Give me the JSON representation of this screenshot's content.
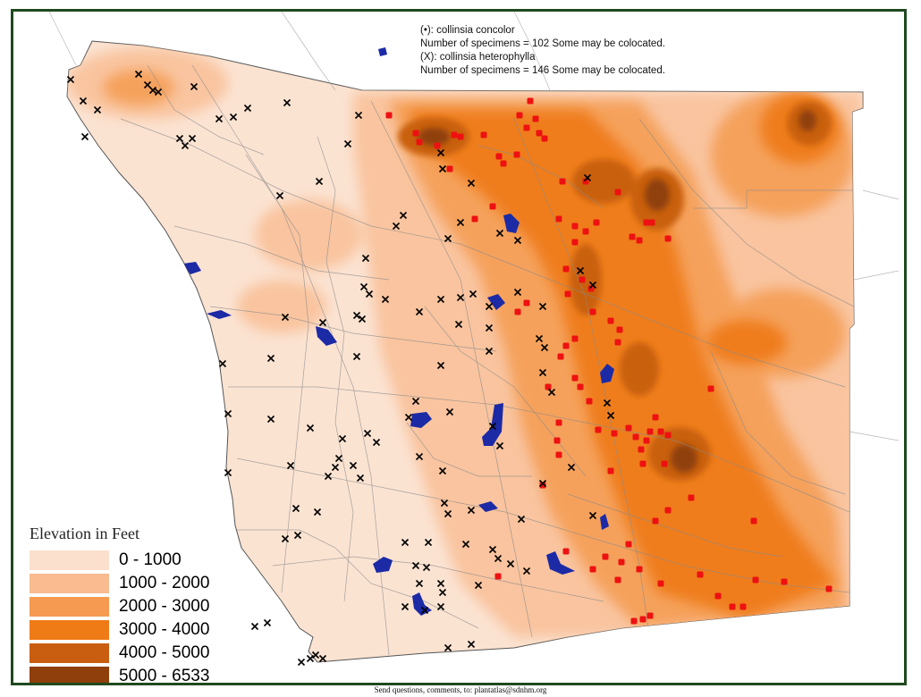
{
  "header": {
    "line1": "(•): collinsia concolor",
    "line2": "Number of specimens = 102   Some may be colocated.",
    "line3": "(X): collinsia heterophylla",
    "line4": "Number of specimens = 146   Some may be colocated."
  },
  "legend": {
    "title": "Elevation in Feet",
    "items": [
      {
        "label": "0 - 1000",
        "color": "#fbe0cd"
      },
      {
        "label": "1000 - 2000",
        "color": "#f9bb8f"
      },
      {
        "label": "2000 - 3000",
        "color": "#f59a50"
      },
      {
        "label": "3000 - 4000",
        "color": "#ef7b17"
      },
      {
        "label": "4000 - 5000",
        "color": "#c95e10"
      },
      {
        "label": "5000 - 6533",
        "color": "#8f3f0b"
      }
    ]
  },
  "footer": {
    "text": "Send questions, comments, to: plantatlas@sdnhm.org"
  },
  "colors": {
    "frame": "#1f4a1f",
    "lake": "#1c2aa6",
    "concolor_marker": "#ee1111",
    "heterophylla_marker": "#000000"
  },
  "map": {
    "concolor_points": [
      [
        432,
        126
      ],
      [
        462,
        146
      ],
      [
        466,
        156
      ],
      [
        486,
        160
      ],
      [
        505,
        148
      ],
      [
        512,
        150
      ],
      [
        538,
        148
      ],
      [
        555,
        172
      ],
      [
        560,
        180
      ],
      [
        575,
        170
      ],
      [
        578,
        126
      ],
      [
        586,
        140
      ],
      [
        596,
        130
      ],
      [
        600,
        146
      ],
      [
        606,
        152
      ],
      [
        590,
        110
      ],
      [
        626,
        200
      ],
      [
        652,
        200
      ],
      [
        688,
        212
      ],
      [
        704,
        262
      ],
      [
        712,
        266
      ],
      [
        720,
        246
      ],
      [
        726,
        246
      ],
      [
        744,
        264
      ],
      [
        622,
        242
      ],
      [
        640,
        250
      ],
      [
        652,
        256
      ],
      [
        664,
        246
      ],
      [
        640,
        268
      ],
      [
        630,
        298
      ],
      [
        648,
        310
      ],
      [
        658,
        320
      ],
      [
        632,
        326
      ],
      [
        660,
        346
      ],
      [
        680,
        356
      ],
      [
        690,
        366
      ],
      [
        688,
        380
      ],
      [
        640,
        376
      ],
      [
        630,
        384
      ],
      [
        624,
        396
      ],
      [
        640,
        420
      ],
      [
        646,
        430
      ],
      [
        656,
        446
      ],
      [
        610,
        430
      ],
      [
        622,
        470
      ],
      [
        666,
        478
      ],
      [
        684,
        482
      ],
      [
        700,
        476
      ],
      [
        708,
        486
      ],
      [
        714,
        500
      ],
      [
        720,
        490
      ],
      [
        724,
        480
      ],
      [
        730,
        464
      ],
      [
        736,
        480
      ],
      [
        744,
        484
      ],
      [
        740,
        516
      ],
      [
        716,
        516
      ],
      [
        620,
        490
      ],
      [
        622,
        506
      ],
      [
        680,
        524
      ],
      [
        792,
        432
      ],
      [
        770,
        554
      ],
      [
        744,
        568
      ],
      [
        730,
        580
      ],
      [
        700,
        606
      ],
      [
        674,
        620
      ],
      [
        692,
        626
      ],
      [
        712,
        634
      ],
      [
        736,
        650
      ],
      [
        660,
        634
      ],
      [
        688,
        646
      ],
      [
        780,
        640
      ],
      [
        840,
        580
      ],
      [
        842,
        646
      ],
      [
        874,
        648
      ],
      [
        924,
        656
      ],
      [
        800,
        664
      ],
      [
        816,
        676
      ],
      [
        828,
        676
      ],
      [
        706,
        692
      ],
      [
        716,
        690
      ],
      [
        724,
        686
      ],
      [
        630,
        614
      ],
      [
        604,
        540
      ],
      [
        576,
        346
      ],
      [
        586,
        336
      ],
      [
        554,
        642
      ],
      [
        528,
        242
      ],
      [
        500,
        186
      ],
      [
        548,
        228
      ]
    ],
    "heterophylla_points": [
      [
        76,
        86
      ],
      [
        90,
        110
      ],
      [
        106,
        120
      ],
      [
        92,
        150
      ],
      [
        152,
        80
      ],
      [
        162,
        92
      ],
      [
        168,
        98
      ],
      [
        174,
        100
      ],
      [
        214,
        94
      ],
      [
        242,
        130
      ],
      [
        258,
        128
      ],
      [
        274,
        118
      ],
      [
        318,
        112
      ],
      [
        198,
        152
      ],
      [
        204,
        160
      ],
      [
        212,
        152
      ],
      [
        398,
        126
      ],
      [
        386,
        158
      ],
      [
        490,
        168
      ],
      [
        492,
        186
      ],
      [
        524,
        202
      ],
      [
        654,
        196
      ],
      [
        310,
        216
      ],
      [
        354,
        200
      ],
      [
        448,
        238
      ],
      [
        440,
        250
      ],
      [
        512,
        246
      ],
      [
        556,
        258
      ],
      [
        576,
        266
      ],
      [
        498,
        264
      ],
      [
        646,
        300
      ],
      [
        660,
        316
      ],
      [
        604,
        340
      ],
      [
        406,
        286
      ],
      [
        404,
        318
      ],
      [
        410,
        326
      ],
      [
        428,
        332
      ],
      [
        466,
        346
      ],
      [
        490,
        332
      ],
      [
        512,
        330
      ],
      [
        526,
        326
      ],
      [
        576,
        324
      ],
      [
        544,
        340
      ],
      [
        358,
        358
      ],
      [
        396,
        350
      ],
      [
        402,
        354
      ],
      [
        316,
        352
      ],
      [
        510,
        360
      ],
      [
        544,
        364
      ],
      [
        600,
        376
      ],
      [
        606,
        386
      ],
      [
        544,
        390
      ],
      [
        490,
        406
      ],
      [
        396,
        396
      ],
      [
        300,
        398
      ],
      [
        246,
        404
      ],
      [
        462,
        446
      ],
      [
        454,
        464
      ],
      [
        500,
        458
      ],
      [
        548,
        474
      ],
      [
        604,
        414
      ],
      [
        614,
        436
      ],
      [
        676,
        448
      ],
      [
        680,
        462
      ],
      [
        252,
        460
      ],
      [
        300,
        466
      ],
      [
        344,
        476
      ],
      [
        380,
        488
      ],
      [
        408,
        482
      ],
      [
        418,
        492
      ],
      [
        322,
        518
      ],
      [
        364,
        530
      ],
      [
        372,
        520
      ],
      [
        376,
        510
      ],
      [
        392,
        518
      ],
      [
        400,
        532
      ],
      [
        252,
        526
      ],
      [
        466,
        508
      ],
      [
        492,
        524
      ],
      [
        556,
        496
      ],
      [
        604,
        538
      ],
      [
        636,
        520
      ],
      [
        660,
        574
      ],
      [
        494,
        560
      ],
      [
        498,
        572
      ],
      [
        524,
        568
      ],
      [
        580,
        578
      ],
      [
        328,
        566
      ],
      [
        352,
        570
      ],
      [
        316,
        600
      ],
      [
        330,
        596
      ],
      [
        450,
        604
      ],
      [
        476,
        604
      ],
      [
        518,
        606
      ],
      [
        548,
        612
      ],
      [
        554,
        622
      ],
      [
        568,
        628
      ],
      [
        586,
        636
      ],
      [
        462,
        630
      ],
      [
        474,
        632
      ],
      [
        490,
        650
      ],
      [
        492,
        660
      ],
      [
        532,
        652
      ],
      [
        450,
        676
      ],
      [
        472,
        680
      ],
      [
        466,
        650
      ],
      [
        490,
        676
      ],
      [
        498,
        722
      ],
      [
        524,
        718
      ],
      [
        334,
        738
      ],
      [
        344,
        734
      ],
      [
        350,
        730
      ],
      [
        358,
        734
      ],
      [
        296,
        694
      ],
      [
        282,
        698
      ]
    ]
  }
}
